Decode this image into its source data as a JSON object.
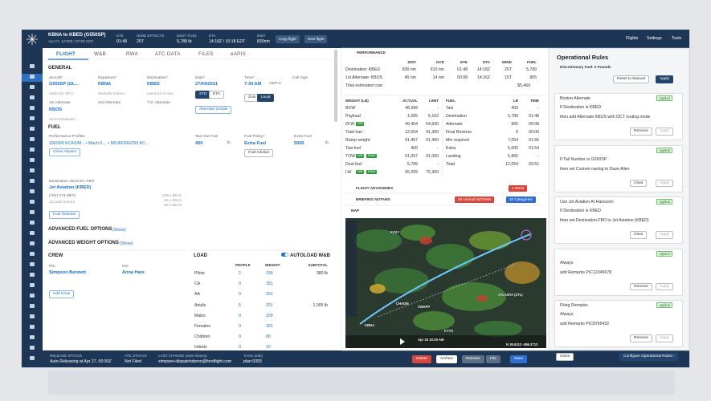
{
  "header": {
    "route": "KBNA to KBED (G550SP)",
    "date": "Apr 27, 12:00Z / 07:00 CDT",
    "stats": [
      {
        "label": "ETE",
        "value": "01:48"
      },
      {
        "label": "WIND EFFECTS",
        "value": "25T"
      },
      {
        "label": "DEST FUEL",
        "value": "5,789 lb"
      },
      {
        "label": "ETA",
        "value": "14:18Z / 10:18 EDT"
      },
      {
        "label": "DIST",
        "value": "830nm"
      }
    ],
    "buttons": [
      "Copy flight",
      "Next flight"
    ],
    "nav": [
      "Flights",
      "Settings",
      "Tools"
    ]
  },
  "tabs": [
    "FLIGHT",
    "W&B",
    "RWA",
    "ATC DATA",
    "FILES",
    "eAPIS"
  ],
  "general": {
    "title": "GENERAL",
    "fields": [
      {
        "label": "Aircraft*",
        "value": "G550SP (GL...",
        "sub": "G550 (SV SP) I..."
      },
      {
        "label": "Departure*",
        "value": "KBNA",
        "sub": "Nashville Interna..."
      },
      {
        "label": "Destination*",
        "value": "KBED",
        "sub": "Laurence G Han..."
      },
      {
        "label": "Date*",
        "value": "27/04/2021"
      },
      {
        "label": "Time*",
        "value": "7:30 AM"
      },
      {
        "label": "Call Sign"
      }
    ],
    "gmt": "GMT-5",
    "mode": [
      "STD",
      "ETA"
    ],
    "zone": [
      "Zulu",
      "Local"
    ],
    "alternates": [
      {
        "label": "1st Alternate",
        "value": "KBOS",
        "sub": "General Edward ..."
      },
      {
        "label": "2nd Alternate"
      },
      {
        "label": "T.O. Alternate"
      }
    ],
    "alt_button": "Alternate Details"
  },
  "fuel": {
    "title": "FUEL",
    "profile_label": "Performance Profiles",
    "profile": "200/300 KCAS/M... • Mach 0.... • M0.80/300/250 KC...",
    "close_advisor": "Close Advisor",
    "taxi_label": "Taxi Out Fuel",
    "taxi": "400",
    "unit": "lb",
    "policy_label": "Fuel Policy*",
    "policy": "Extra Fuel",
    "fuel_advisor": "Fuel Advisor",
    "extra_label": "Extra Fuel",
    "extra": "5000"
  },
  "fbo": {
    "label": "Destination Services: FBO",
    "name": "Jet Aviation (KBED)",
    "phone": "(781) 274-6573",
    "unicom": "131.525 Unicom",
    "prices": [
      "100LL $9.51",
      "Jet-A $9.24",
      "Jet-A $6.79"
    ],
    "button": "Fuel Release"
  },
  "advanced": [
    {
      "title": "ADVANCED FUEL OPTIONS",
      "link": "(Show)"
    },
    {
      "title": "ADVANCED WEIGHT OPTIONS",
      "link": "(Show)"
    }
  ],
  "crew": {
    "title": "CREW",
    "members": [
      {
        "role": "PIC",
        "name": "Simpson Bennett"
      },
      {
        "role": "SIC",
        "name": "Anna Hare"
      }
    ],
    "button": "Add Crew"
  },
  "load": {
    "title": "LOAD",
    "autoload": "AUTOLOAD W&B",
    "columns": [
      "PEOPLE",
      "WEIGHT",
      "SUBTOTAL"
    ],
    "rows": [
      {
        "name": "Pilots",
        "people": 2,
        "weight": 190,
        "subtotal": "380 lb"
      },
      {
        "name": "CA",
        "people": 0,
        "weight": 181
      },
      {
        "name": "AA",
        "people": 0,
        "weight": 201
      },
      {
        "name": "Adults",
        "people": 5,
        "weight": 201,
        "subtotal": "1,005 lb"
      },
      {
        "name": "Males",
        "people": 0,
        "weight": 209
      },
      {
        "name": "Females",
        "people": 0,
        "weight": 181
      },
      {
        "name": "Children",
        "people": 0,
        "weight": 80
      },
      {
        "name": "Infants",
        "people": 0,
        "weight": 20
      }
    ]
  },
  "performance": {
    "title": "PERFORMANCE",
    "columns": [
      "DIST",
      "GCD",
      "ETE",
      "ETA",
      "WIND",
      "FUEL"
    ],
    "rows": [
      {
        "label": "Destination: KBED",
        "values": [
          "830 nm",
          "810 nm",
          "01:48",
          "14:18Z",
          "25T",
          "5,789"
        ]
      },
      {
        "label": "1st Alternate: KBOS",
        "values": [
          "45 nm",
          "14 nm",
          "00:08",
          "14:26Z",
          "15T",
          "865"
        ]
      }
    ],
    "cost_label": "Total estimated cost",
    "cost": "$5,469"
  },
  "weights": {
    "columns": [
      "WEIGHT (LB)",
      "ACTUAL",
      "LIMIT"
    ],
    "rows": [
      {
        "cells": [
          "BOW",
          "48,399",
          "-"
        ]
      },
      {
        "cells": [
          "Payload",
          "1,005",
          "6,102"
        ]
      },
      {
        "cells": [
          "ZFW",
          "49,404",
          "54,500"
        ],
        "badges": [
          "WB"
        ]
      },
      {
        "cells": [
          "Total fuel",
          "12,054",
          "41,300"
        ]
      },
      {
        "cells": [
          "Ramp weight",
          "61,457",
          "91,400"
        ]
      },
      {
        "cells": [
          "Taxi fuel",
          "400",
          "-"
        ]
      },
      {
        "cells": [
          "TOW",
          "61,057",
          "91,000"
        ],
        "badges": [
          "WB",
          "RWA"
        ]
      },
      {
        "cells": [
          "Dest fuel",
          "5,789",
          "-"
        ]
      },
      {
        "cells": [
          "LW",
          "55,269",
          "75,300"
        ],
        "badges": [
          "WB",
          "RWA"
        ]
      }
    ]
  },
  "fuel_table": {
    "columns": [
      "FUEL",
      "LB",
      "TIME"
    ],
    "rows": [
      [
        "Taxi",
        "400",
        "-"
      ],
      [
        "Destination",
        "5,789",
        "01:48"
      ],
      [
        "Alternate",
        "865",
        "00:08"
      ],
      [
        "Final Reserve",
        "0",
        "00:00"
      ],
      [
        "Min required",
        "7,054",
        "01:56"
      ],
      [
        "Extra",
        "5,000",
        "01:54"
      ],
      [
        "Landing",
        "5,865",
        "-"
      ],
      [
        "Total",
        "12,054",
        "03:51"
      ]
    ]
  },
  "sections": {
    "advisories": "FLIGHT ADVISORIES",
    "advisories_badge": "2 Items",
    "notams": "BRIEFING NOTAMS",
    "notams_badge": "26 Unread NOTAMs",
    "notams_cat": "10 Categories",
    "map": "MAP"
  },
  "map": {
    "points": [
      "KBNA",
      "CHADM",
      "SWAPP",
      "KTYS",
      "ATLANTA (ZTL)",
      "KJVY"
    ],
    "time": "Apr 25 10:20 AM",
    "coords": "N 36.5313 -086.3713"
  },
  "rules": {
    "title": "Operational Rules",
    "discretionary": "Discretionary Fuel: 0 Pounds",
    "reset": "Reset to Manual",
    "apply": "Apply",
    "cards": [
      {
        "title": "Boston Alternate",
        "status": "Applied",
        "lines": [
          "If Destination is KBED",
          "then add Alternate KBOS with DCT routing mode"
        ],
        "buttons": [
          "Remove",
          "Apply"
        ]
      },
      {
        "status": "Applied",
        "lines": [
          "If Tail Number is G550SP",
          "then set Custom navlog to Dave Allen"
        ],
        "buttons": [
          "Clear",
          "Apply"
        ]
      },
      {
        "title": "Use Jet Aviation At Hanscom",
        "status": "Applied",
        "lines": [
          "If Destination is KBED",
          "then set Destination FBO to Jet Aviation (KBED)"
        ],
        "buttons": [
          "Clear",
          "Apply"
        ]
      },
      {
        "status": "Applied",
        "lines": [
          "Always",
          "add Remarks PIC12345678"
        ],
        "buttons": [
          "Remove",
          "Apply"
        ]
      },
      {
        "title": "Filing Remarks",
        "status": "Applied",
        "lines": [
          "Always",
          "add Remarks PIC8765432"
        ],
        "buttons": [
          "Remove",
          "Apply"
        ]
      }
    ],
    "close": "Close",
    "configure": "Configure Operational Rules ›"
  },
  "footer": {
    "status": [
      {
        "label": "RELEASE STATUS",
        "value": "Auto-Releasing at Apr 27, 00:30Z"
      },
      {
        "label": "ATC STATUS",
        "value": "Not Filed"
      },
      {
        "label": "LAST CHANGE (view history)",
        "value": "simpson+dispatchdemo@foreflight.com"
      },
      {
        "label": "TAGS (edit)",
        "value": "plan:9393"
      }
    ],
    "buttons": [
      "Delete",
      "Archive",
      "Release",
      "File",
      "Save"
    ]
  }
}
